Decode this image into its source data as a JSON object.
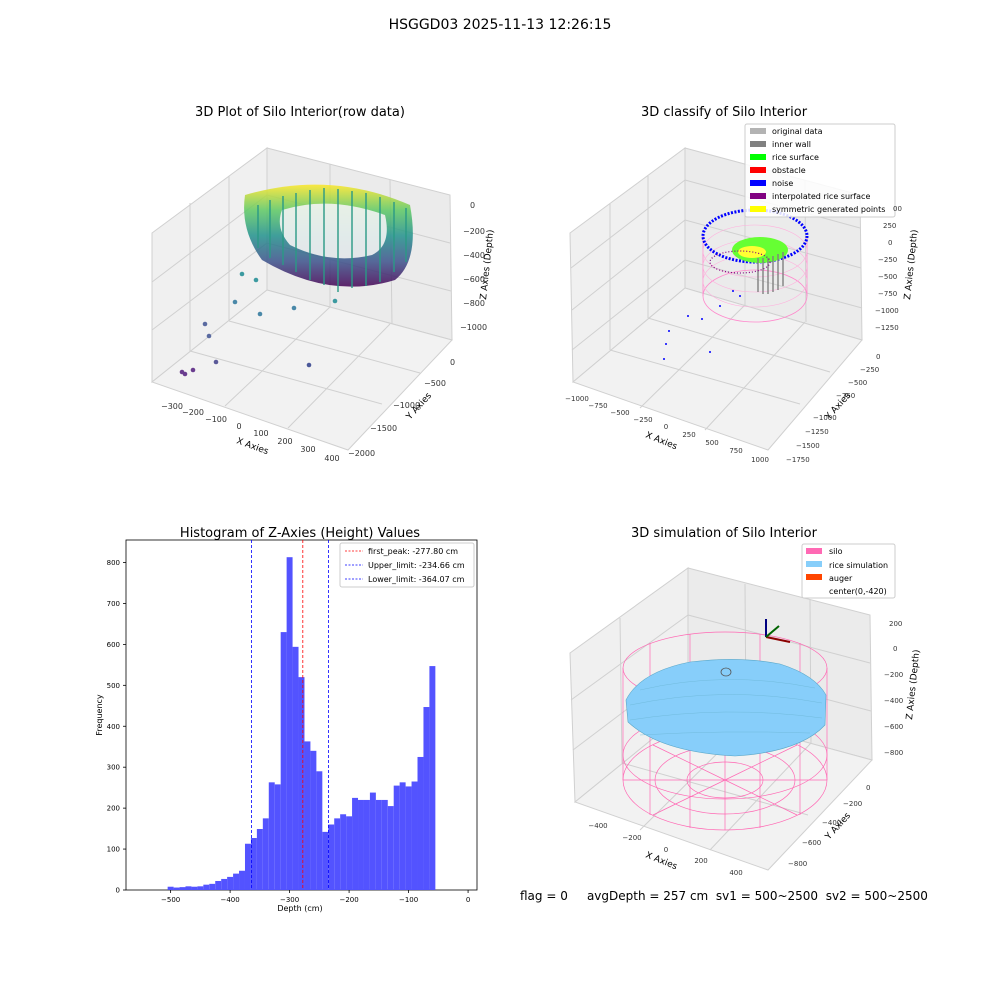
{
  "figure": {
    "title": "HSGGD03 2025-11-13 12:26:15",
    "footer": {
      "flag": "flag = 0",
      "avg_depth": "avgDepth = 257 cm",
      "sv1": "sv1 = 500~2500",
      "sv2": "sv2 = 500~2500"
    }
  },
  "chart_data": [
    {
      "type": "scatter",
      "panel": "top-left",
      "title": "3D Plot of Silo Interior(row data)",
      "xlabel": "X Axies",
      "ylabel": "Y Axies",
      "zlabel": "Z Axies (Depth)",
      "x_ticks": [
        "−300",
        "−200",
        "−100",
        "0",
        "100",
        "200",
        "300",
        "400"
      ],
      "y_ticks": [
        "0",
        "−500",
        "−1000",
        "−1500",
        "−2000"
      ],
      "z_ticks": [
        "0",
        "−200",
        "−400",
        "−600",
        "−800",
        "−1000"
      ],
      "xlim": [
        -350,
        400
      ],
      "ylim": [
        -2050,
        50
      ],
      "zlim": [
        -1100,
        50
      ],
      "colormap": "viridis",
      "note_points": [
        {
          "x": -300,
          "y": -1500,
          "z": -1050
        },
        {
          "x": -280,
          "y": -1400,
          "z": -1040
        },
        {
          "x": -230,
          "y": -1200,
          "z": -1000
        },
        {
          "x": 250,
          "y": -1800,
          "z": -980
        },
        {
          "x": -200,
          "y": -1000,
          "z": -850
        },
        {
          "x": -180,
          "y": -900,
          "z": -820
        }
      ]
    },
    {
      "type": "scatter",
      "panel": "top-right",
      "title": "3D classify of Silo Interior",
      "xlabel": "X Axies",
      "ylabel": "Y Axies",
      "zlabel": "Z Axies (Depth)",
      "x_ticks": [
        "−1000",
        "−750",
        "−500",
        "−250",
        "0",
        "250",
        "500",
        "750",
        "1000"
      ],
      "y_ticks": [
        "0",
        "−250",
        "−500",
        "−750",
        "−1000",
        "−1250",
        "−1500",
        "−1750"
      ],
      "z_ticks": [
        "250",
        "0",
        "−250",
        "−500",
        "−750",
        "−1000",
        "−1250"
      ],
      "z_top_tick": "00",
      "legend": {
        "position": "upper-right",
        "items": [
          {
            "label": "original data",
            "color": "#b3b3b3"
          },
          {
            "label": "inner wall",
            "color": "#808080"
          },
          {
            "label": "rice surface",
            "color": "#00ff00"
          },
          {
            "label": "obstacle",
            "color": "#ff0000"
          },
          {
            "label": "noise",
            "color": "#0000ff"
          },
          {
            "label": "interpolated rice surface",
            "color": "#800080"
          },
          {
            "label": "symmetric generated points",
            "color": "#ffff00"
          }
        ]
      }
    },
    {
      "type": "bar",
      "panel": "bottom-left",
      "title": "Histogram of Z-Axies (Height) Values",
      "xlabel": "Depth (cm)",
      "ylabel": "Frequency",
      "xlim": [
        -575,
        15
      ],
      "ylim": [
        0,
        855
      ],
      "x_ticks": [
        -500,
        -400,
        -300,
        -200,
        -100,
        0
      ],
      "y_ticks": [
        0,
        100,
        200,
        300,
        400,
        500,
        600,
        700,
        800
      ],
      "bin_edges_start": -505,
      "bin_width": 10,
      "values": [
        8,
        6,
        7,
        9,
        8,
        9,
        13,
        15,
        22,
        27,
        32,
        40,
        47,
        113,
        127,
        149,
        175,
        263,
        258,
        630,
        813,
        594,
        520,
        363,
        340,
        290,
        142,
        160,
        175,
        185,
        180,
        225,
        220,
        220,
        238,
        220,
        220,
        205,
        255,
        263,
        253,
        265,
        325,
        447,
        547
      ],
      "bar_color": "#5050ff",
      "lines": [
        {
          "label": "first_peak: -277.80 cm",
          "x": -277.8,
          "color": "#ff0000"
        },
        {
          "label": "Upper_limit: -234.66 cm",
          "x": -234.66,
          "color": "#0000ff"
        },
        {
          "label": "Lower_limit: -364.07 cm",
          "x": -364.07,
          "color": "#0000ff"
        }
      ],
      "legend_position": "upper-right"
    },
    {
      "type": "scatter",
      "panel": "bottom-right",
      "title": "3D simulation of Silo Interior",
      "xlabel": "X Axies",
      "ylabel": "Y Axies",
      "zlabel": "Z Axies (Depth)",
      "x_ticks": [
        "−400",
        "−200",
        "0",
        "200",
        "400"
      ],
      "y_ticks": [
        "0",
        "−200",
        "−400",
        "−600",
        "−800"
      ],
      "z_ticks": [
        "200",
        "0",
        "−200",
        "−400",
        "−600",
        "−800"
      ],
      "legend": {
        "position": "upper-right",
        "items": [
          {
            "label": "silo",
            "color": "#ff69b4"
          },
          {
            "label": "rice simulation",
            "color": "#87cefa"
          },
          {
            "label": "auger",
            "color": "#ff4500"
          },
          {
            "label": "center(0,-420)",
            "color": ""
          }
        ]
      }
    }
  ]
}
